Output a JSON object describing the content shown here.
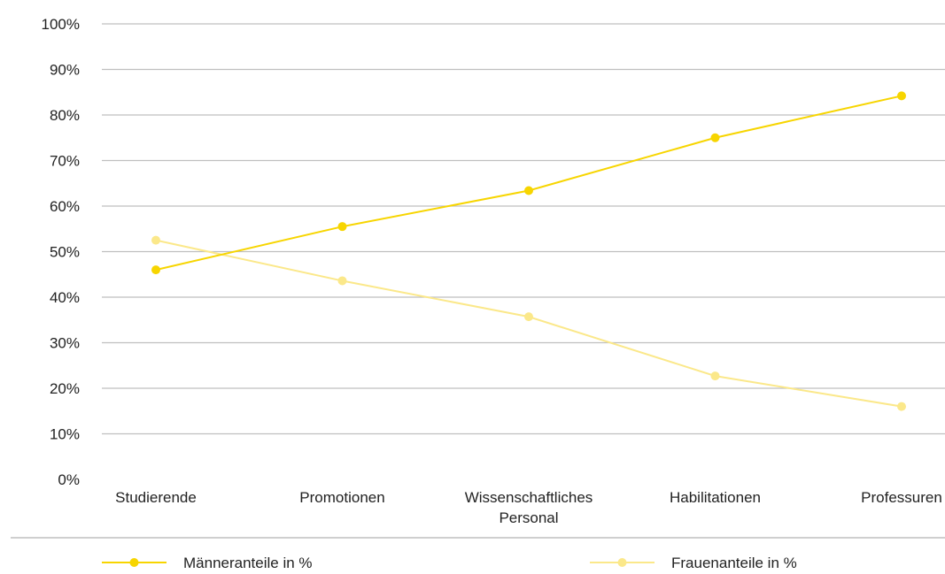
{
  "chart_data": {
    "type": "line",
    "categories": [
      "Studierende",
      "Promotionen",
      "Wissenschaftliches Personal",
      "Habilitationen",
      "Professuren"
    ],
    "category_lines": [
      [
        "Studierende"
      ],
      [
        "Promotionen"
      ],
      [
        "Wissenschaftliches",
        "Personal"
      ],
      [
        "Habilitationen"
      ],
      [
        "Professuren"
      ]
    ],
    "y_ticks": [
      "0%",
      "10%",
      "20%",
      "30%",
      "40%",
      "50%",
      "60%",
      "70%",
      "80%",
      "90%",
      "100%"
    ],
    "ylim": [
      0,
      100
    ],
    "grid": true,
    "legend_position": "bottom",
    "series": [
      {
        "name": "Männeranteile in %",
        "values": [
          46,
          55.5,
          63.4,
          75,
          84.2
        ],
        "color": "#f7d500"
      },
      {
        "name": "Frauenanteile in %",
        "values": [
          52.5,
          43.6,
          35.7,
          22.7,
          16
        ],
        "color": "#fbe88a"
      }
    ],
    "title": "",
    "xlabel": "",
    "ylabel": ""
  },
  "colors": {
    "grid": "#bfbfbf",
    "text": "#222222"
  }
}
